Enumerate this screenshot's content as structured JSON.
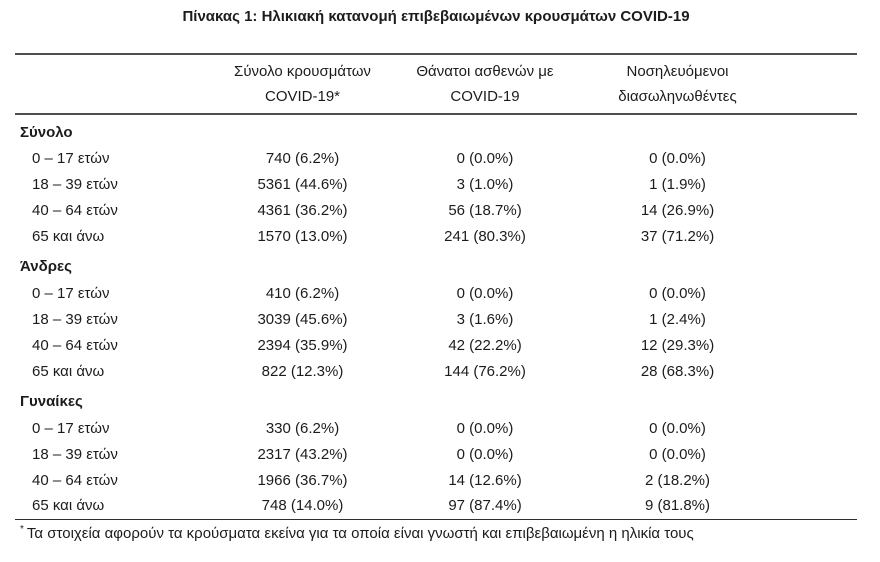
{
  "title": "Πίνακας 1: Ηλικιακή κατανομή επιβεβαιωμένων κρουσμάτων COVID-19",
  "colors": {
    "rule_heavy": "#4f4f4f",
    "rule_light": "#2e2e2e",
    "text": "#1c1c1c",
    "background": "#ffffff"
  },
  "table": {
    "columns": [
      {
        "line1": "Σύνολο κρουσμάτων",
        "line2": "COVID-19*"
      },
      {
        "line1": "Θάνατοι ασθενών με",
        "line2": "COVID-19"
      },
      {
        "line1": "Νοσηλευόμενοι",
        "line2": "διασωληνωθέντες"
      }
    ],
    "sections": [
      {
        "label": "Σύνολο",
        "rows": [
          {
            "age": "0 – 17 ετών",
            "cases": "740 (6.2%)",
            "deaths": "0 (0.0%)",
            "intubated": "0 (0.0%)"
          },
          {
            "age": "18 – 39 ετών",
            "cases": "5361 (44.6%)",
            "deaths": "3 (1.0%)",
            "intubated": "1 (1.9%)"
          },
          {
            "age": "40 – 64 ετών",
            "cases": "4361 (36.2%)",
            "deaths": "56 (18.7%)",
            "intubated": "14 (26.9%)"
          },
          {
            "age": "65 και άνω",
            "cases": "1570 (13.0%)",
            "deaths": "241 (80.3%)",
            "intubated": "37 (71.2%)"
          }
        ]
      },
      {
        "label": "Άνδρες",
        "rows": [
          {
            "age": "0 – 17 ετών",
            "cases": "410 (6.2%)",
            "deaths": "0 (0.0%)",
            "intubated": "0 (0.0%)"
          },
          {
            "age": "18 – 39 ετών",
            "cases": "3039 (45.6%)",
            "deaths": "3 (1.6%)",
            "intubated": "1 (2.4%)"
          },
          {
            "age": "40 – 64 ετών",
            "cases": "2394 (35.9%)",
            "deaths": "42 (22.2%)",
            "intubated": "12 (29.3%)"
          },
          {
            "age": "65 και άνω",
            "cases": "822 (12.3%)",
            "deaths": "144 (76.2%)",
            "intubated": "28 (68.3%)"
          }
        ]
      },
      {
        "label": "Γυναίκες",
        "rows": [
          {
            "age": "0 – 17 ετών",
            "cases": "330 (6.2%)",
            "deaths": "0 (0.0%)",
            "intubated": "0 (0.0%)"
          },
          {
            "age": "18 – 39 ετών",
            "cases": "2317 (43.2%)",
            "deaths": "0 (0.0%)",
            "intubated": "0 (0.0%)"
          },
          {
            "age": "40 – 64 ετών",
            "cases": "1966 (36.7%)",
            "deaths": "14 (12.6%)",
            "intubated": "2 (18.2%)"
          },
          {
            "age": "65 και άνω",
            "cases": "748 (14.0%)",
            "deaths": "97 (87.4%)",
            "intubated": "9 (81.8%)"
          }
        ]
      }
    ]
  },
  "footnote": {
    "marker": "*",
    "text": "Τα στοιχεία αφορούν τα κρούσματα εκείνα για τα οποία είναι γνωστή και επιβεβαιωμένη η ηλικία τους"
  }
}
